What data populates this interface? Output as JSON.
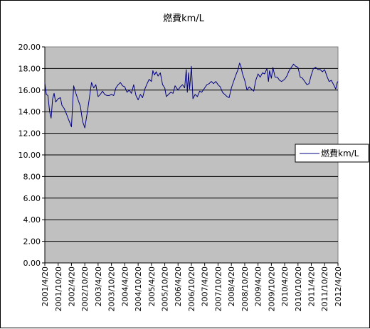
{
  "chart_data": {
    "type": "line",
    "title": "燃費km/L",
    "xlabel": "",
    "ylabel": "",
    "ylim": [
      0,
      20
    ],
    "yticks": [
      "0.00",
      "2.00",
      "4.00",
      "6.00",
      "8.00",
      "10.00",
      "12.00",
      "14.00",
      "16.00",
      "18.00",
      "20.00"
    ],
    "xticks": [
      "2001/4/20",
      "2001/10/20",
      "2002/4/20",
      "2002/10/20",
      "2003/4/20",
      "2003/10/20",
      "2004/4/20",
      "2004/10/20",
      "2005/4/20",
      "2005/10/20",
      "2006/4/20",
      "2006/10/20",
      "2007/4/20",
      "2007/10/20",
      "2008/4/20",
      "2008/10/20",
      "2009/4/20",
      "2009/10/20",
      "2010/4/20",
      "2010/10/20",
      "2011/4/20",
      "2011/10/20",
      "2012/4/20"
    ],
    "grid": true,
    "legend_position": "right",
    "plot_background": "#c0c0c0",
    "series": [
      {
        "name": "燃費km/L",
        "color": "#000080",
        "points": [
          [
            "2001/4/20",
            16.7
          ],
          [
            "2001/5/10",
            15.6
          ],
          [
            "2001/6/1",
            15.5
          ],
          [
            "2001/6/25",
            14.0
          ],
          [
            "2001/7/15",
            13.4
          ],
          [
            "2001/8/5",
            15.2
          ],
          [
            "2001/8/25",
            15.7
          ],
          [
            "2001/9/15",
            14.9
          ],
          [
            "2001/10/20",
            15.2
          ],
          [
            "2001/11/20",
            15.3
          ],
          [
            "2001/12/10",
            14.6
          ],
          [
            "2002/1/10",
            14.3
          ],
          [
            "2002/2/10",
            13.8
          ],
          [
            "2002/3/10",
            13.3
          ],
          [
            "2002/4/20",
            12.6
          ],
          [
            "2002/5/20",
            16.4
          ],
          [
            "2002/6/20",
            15.7
          ],
          [
            "2002/7/20",
            15.1
          ],
          [
            "2002/8/20",
            14.5
          ],
          [
            "2002/9/20",
            13.1
          ],
          [
            "2002/10/20",
            12.5
          ],
          [
            "2002/11/20",
            13.8
          ],
          [
            "2002/12/20",
            15.2
          ],
          [
            "2003/1/20",
            16.7
          ],
          [
            "2003/2/20",
            16.2
          ],
          [
            "2003/3/20",
            16.5
          ],
          [
            "2003/4/20",
            15.4
          ],
          [
            "2003/5/20",
            15.6
          ],
          [
            "2003/6/20",
            15.9
          ],
          [
            "2003/7/20",
            15.6
          ],
          [
            "2003/8/20",
            15.5
          ],
          [
            "2003/9/20",
            15.5
          ],
          [
            "2003/10/20",
            15.6
          ],
          [
            "2003/11/20",
            15.5
          ],
          [
            "2003/12/20",
            16.2
          ],
          [
            "2004/1/20",
            16.5
          ],
          [
            "2004/2/20",
            16.7
          ],
          [
            "2004/3/20",
            16.4
          ],
          [
            "2004/4/20",
            16.3
          ],
          [
            "2004/5/20",
            15.8
          ],
          [
            "2004/6/20",
            16.0
          ],
          [
            "2004/7/20",
            15.7
          ],
          [
            "2004/8/20",
            16.5
          ],
          [
            "2004/9/20",
            15.5
          ],
          [
            "2004/10/20",
            15.1
          ],
          [
            "2004/11/20",
            15.6
          ],
          [
            "2004/12/20",
            15.3
          ],
          [
            "2005/1/20",
            16.1
          ],
          [
            "2005/2/20",
            16.6
          ],
          [
            "2005/3/20",
            17.0
          ],
          [
            "2005/4/20",
            16.8
          ],
          [
            "2005/5/10",
            17.8
          ],
          [
            "2005/6/1",
            17.4
          ],
          [
            "2005/6/25",
            17.7
          ],
          [
            "2005/7/20",
            17.3
          ],
          [
            "2005/8/20",
            17.6
          ],
          [
            "2005/9/20",
            16.5
          ],
          [
            "2005/10/20",
            16.2
          ],
          [
            "2005/11/10",
            15.4
          ],
          [
            "2005/12/10",
            15.6
          ],
          [
            "2006/1/10",
            15.8
          ],
          [
            "2006/2/10",
            15.7
          ],
          [
            "2006/3/10",
            16.4
          ],
          [
            "2006/4/20",
            16.0
          ],
          [
            "2006/5/20",
            16.3
          ],
          [
            "2006/6/20",
            16.5
          ],
          [
            "2006/7/20",
            16.2
          ],
          [
            "2006/8/10",
            17.9
          ],
          [
            "2006/8/25",
            15.8
          ],
          [
            "2006/9/10",
            17.6
          ],
          [
            "2006/9/25",
            16.1
          ],
          [
            "2006/10/20",
            18.2
          ],
          [
            "2006/11/10",
            15.2
          ],
          [
            "2006/12/10",
            15.6
          ],
          [
            "2007/1/10",
            15.4
          ],
          [
            "2007/2/10",
            15.9
          ],
          [
            "2007/3/10",
            15.8
          ],
          [
            "2007/4/20",
            16.2
          ],
          [
            "2007/5/20",
            16.5
          ],
          [
            "2007/6/20",
            16.6
          ],
          [
            "2007/7/20",
            16.8
          ],
          [
            "2007/8/20",
            16.6
          ],
          [
            "2007/9/20",
            16.8
          ],
          [
            "2007/10/20",
            16.5
          ],
          [
            "2007/11/20",
            16.3
          ],
          [
            "2007/12/20",
            15.8
          ],
          [
            "2008/1/20",
            15.6
          ],
          [
            "2008/2/20",
            15.4
          ],
          [
            "2008/3/20",
            15.3
          ],
          [
            "2008/4/20",
            16.2
          ],
          [
            "2008/5/20",
            16.8
          ],
          [
            "2008/6/20",
            17.4
          ],
          [
            "2008/7/20",
            17.9
          ],
          [
            "2008/8/10",
            18.5
          ],
          [
            "2008/8/25",
            18.3
          ],
          [
            "2008/9/20",
            17.5
          ],
          [
            "2008/10/20",
            16.9
          ],
          [
            "2008/11/20",
            16.0
          ],
          [
            "2008/12/20",
            16.3
          ],
          [
            "2009/1/20",
            16.1
          ],
          [
            "2009/2/20",
            15.9
          ],
          [
            "2009/3/20",
            16.9
          ],
          [
            "2009/4/20",
            17.5
          ],
          [
            "2009/5/20",
            17.2
          ],
          [
            "2009/6/20",
            17.6
          ],
          [
            "2009/7/20",
            17.5
          ],
          [
            "2009/8/20",
            18.0
          ],
          [
            "2009/9/10",
            16.8
          ],
          [
            "2009/9/25",
            17.8
          ],
          [
            "2009/10/20",
            17.1
          ],
          [
            "2009/11/10",
            18.1
          ],
          [
            "2009/12/10",
            17.2
          ],
          [
            "2010/1/10",
            17.2
          ],
          [
            "2010/2/10",
            16.9
          ],
          [
            "2010/3/10",
            16.8
          ],
          [
            "2010/4/20",
            17.0
          ],
          [
            "2010/5/20",
            17.3
          ],
          [
            "2010/6/20",
            17.8
          ],
          [
            "2010/7/20",
            18.1
          ],
          [
            "2010/8/20",
            18.4
          ],
          [
            "2010/9/20",
            18.2
          ],
          [
            "2010/10/20",
            18.1
          ],
          [
            "2010/11/20",
            17.2
          ],
          [
            "2010/12/20",
            17.1
          ],
          [
            "2011/1/20",
            16.8
          ],
          [
            "2011/2/20",
            16.5
          ],
          [
            "2011/3/20",
            16.6
          ],
          [
            "2011/4/20",
            17.4
          ],
          [
            "2011/5/20",
            18.0
          ],
          [
            "2011/6/20",
            18.1
          ],
          [
            "2011/7/20",
            17.9
          ],
          [
            "2011/8/20",
            17.9
          ],
          [
            "2011/9/20",
            17.7
          ],
          [
            "2011/10/20",
            17.9
          ],
          [
            "2011/11/20",
            17.3
          ],
          [
            "2011/12/20",
            16.8
          ],
          [
            "2012/1/20",
            16.9
          ],
          [
            "2012/2/20",
            16.5
          ],
          [
            "2012/3/20",
            16.1
          ],
          [
            "2012/4/10",
            16.7
          ],
          [
            "2012/4/20",
            16.8
          ]
        ]
      }
    ]
  }
}
